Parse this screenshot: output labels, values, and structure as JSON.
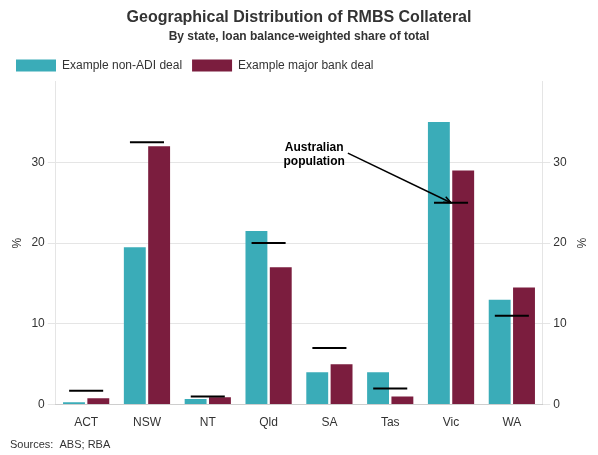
{
  "chart_data": {
    "type": "bar",
    "title": "Geographical Distribution of RMBS Collateral",
    "subtitle": "By state, loan balance-weighted share of total",
    "categories": [
      "ACT",
      "NSW",
      "NT",
      "Qld",
      "SA",
      "Tas",
      "Vic",
      "WA"
    ],
    "series": [
      {
        "name": "Example non-ADI deal",
        "color": "#3AACB8",
        "values": [
          0.3,
          19.5,
          0.7,
          21.5,
          4.0,
          4.0,
          35.0,
          13.0
        ]
      },
      {
        "name": "Example major bank deal",
        "color": "#7B1D3E",
        "values": [
          0.8,
          32.0,
          0.9,
          17.0,
          5.0,
          1.0,
          29.0,
          14.5
        ]
      },
      {
        "type": "line",
        "marker": "hline",
        "line_style": "none",
        "color": "#000000",
        "values": [
          1.7,
          32.5,
          1.0,
          20.0,
          7.0,
          2.0,
          25.0,
          11.0
        ]
      }
    ],
    "ylabel": "%",
    "y2label": "%",
    "ylim": [
      0,
      40
    ],
    "yticks": [
      0,
      10,
      20,
      30
    ],
    "y2lim": [
      0,
      40
    ],
    "y2ticks": [
      0,
      10,
      20,
      30
    ],
    "grid": true,
    "legend": "upper left",
    "annotations": [
      {
        "text": "Australian\npopulation",
        "x": "Vic",
        "y": 25
      }
    ],
    "sources": "Sources:  ABS; RBA"
  }
}
